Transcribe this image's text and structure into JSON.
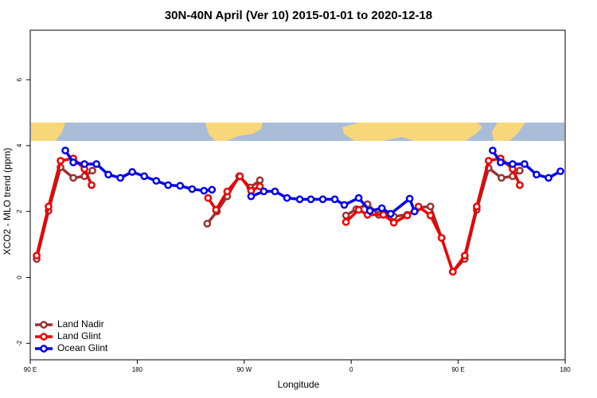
{
  "chart_data": {
    "type": "line",
    "title": "30N-40N April (Ver 10)   2015-01-01 to 2020-12-18",
    "xlabel": "Longitude",
    "ylabel": "XCO2 - MLO trend (ppm)",
    "xlim": [
      90,
      540
    ],
    "ylim": [
      -2.5,
      7.5
    ],
    "xticks": [
      {
        "value": 90,
        "label": "90 E"
      },
      180,
      {
        "value": 270,
        "label": "90 W"
      },
      {
        "value": 360,
        "label": "0"
      },
      {
        "value": 450,
        "label": "90 E"
      },
      {
        "value": 540,
        "label": "180"
      }
    ],
    "yticks": [
      -2,
      0,
      2,
      4,
      6
    ],
    "legend": "bottom-left",
    "series": [
      {
        "name": "Land Nadir",
        "color": "#993333",
        "x": [
          95.4,
          105.4,
          115.5,
          126.2,
          135.6,
          142.3,
          null,
          238.9,
          247,
          255.7,
          265.7,
          275.1,
          283.2,
          null,
          355.6,
          364.3,
          373.7,
          383.1,
          395.8,
          407.2,
          416.6,
          426.7,
          436,
          445.5,
          455.5,
          465.6,
          475.6,
          486.4,
          495.8,
          501.8
        ],
        "values": [
          0.56,
          2.02,
          3.34,
          3.02,
          3.07,
          3.24,
          null,
          1.63,
          2.0,
          2.46,
          3.07,
          2.73,
          2.95,
          null,
          1.88,
          2.07,
          2.22,
          1.9,
          1.85,
          1.9,
          2.12,
          2.15,
          1.2,
          0.17,
          0.56,
          2.05,
          3.32,
          3.02,
          3.07,
          3.24
        ]
      },
      {
        "name": "Land Glint",
        "color": "#ee0000",
        "x": [
          95.4,
          105.4,
          115.5,
          126.2,
          135.6,
          141.6,
          null,
          239.6,
          246.3,
          255.7,
          266.4,
          275.8,
          283.2,
          null,
          355.6,
          366.3,
          373.7,
          387.1,
          395.8,
          407.2,
          416.6,
          426.7,
          436,
          445.5,
          455.5,
          465.6,
          475.6,
          485.7,
          495.8,
          501.8
        ],
        "values": [
          0.66,
          2.15,
          3.54,
          3.61,
          3.29,
          2.8,
          null,
          2.41,
          2.05,
          2.61,
          3.07,
          2.63,
          2.76,
          null,
          1.68,
          2.05,
          1.9,
          1.9,
          1.66,
          1.88,
          2.15,
          1.88,
          1.2,
          0.17,
          0.66,
          2.15,
          3.54,
          3.61,
          3.29,
          2.8
        ]
      },
      {
        "name": "Ocean Glint",
        "color": "#0000ee",
        "x": [
          119.5,
          126.2,
          135.6,
          145.7,
          155.7,
          165.8,
          175.8,
          185.9,
          196,
          206,
          216.1,
          226.2,
          236.2,
          242.9,
          null,
          275.8,
          286.5,
          295.9,
          306,
          316.7,
          326.1,
          336.1,
          346.2,
          354.2,
          366.3,
          375.7,
          385.8,
          393.2,
          409.2,
          413.3,
          null,
          479,
          485.7,
          495.8,
          505.8,
          515.9,
          526,
          536
        ],
        "values": [
          3.85,
          3.49,
          3.44,
          3.44,
          3.12,
          3.02,
          3.2,
          3.07,
          2.93,
          2.8,
          2.78,
          2.68,
          2.63,
          2.66,
          null,
          2.46,
          2.61,
          2.61,
          2.41,
          2.37,
          2.37,
          2.37,
          2.37,
          2.2,
          2.41,
          2.02,
          2.1,
          1.93,
          2.39,
          2.0,
          null,
          3.85,
          3.49,
          3.44,
          3.44,
          3.12,
          3.02,
          3.22
        ]
      }
    ]
  }
}
